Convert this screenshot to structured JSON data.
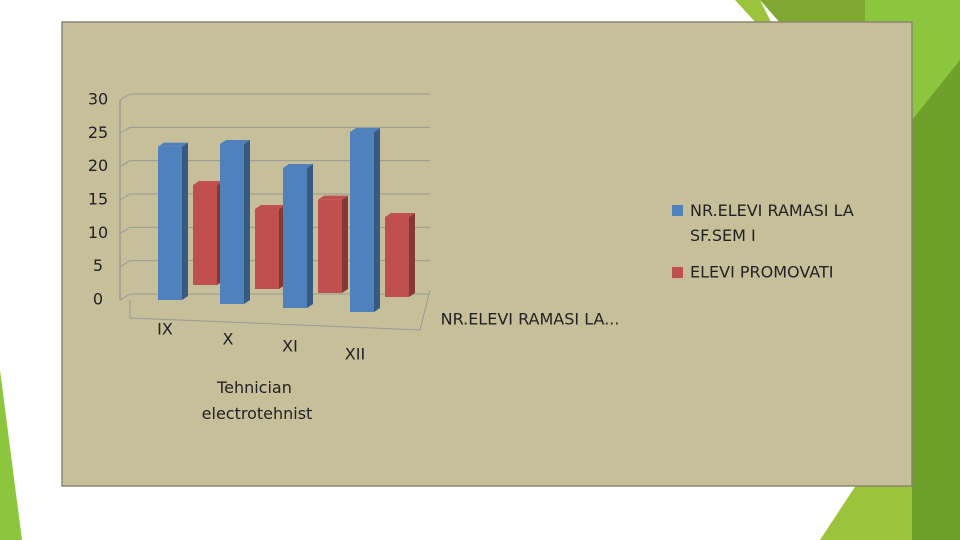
{
  "chart_data": {
    "type": "bar",
    "categories": [
      "IX",
      "X",
      "XI",
      "XII"
    ],
    "x_label": "Tehnician electrotehnist",
    "depth_label": "NR.ELEVI RAMASI LA...",
    "series": [
      {
        "name": "NR.ELEVI RAMASI LA SF.SEM I",
        "color": "#4f81bd",
        "values": [
          23,
          24,
          21,
          27
        ]
      },
      {
        "name": "ELEVI PROMOVATI",
        "color": "#c0504d",
        "values": [
          15,
          12,
          14,
          12
        ]
      }
    ],
    "ylim": [
      0,
      30
    ],
    "yticks": [
      0,
      5,
      10,
      15,
      20,
      25,
      30
    ],
    "grid": true
  }
}
